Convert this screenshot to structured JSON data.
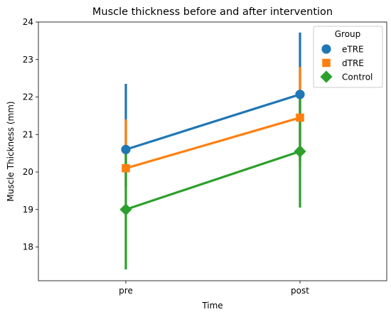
{
  "chart_data": {
    "type": "line",
    "title": "Muscle thickness before and after intervention",
    "xlabel": "Time",
    "ylabel": "Muscle Thickness (mm)",
    "categories": [
      "pre",
      "post"
    ],
    "ylim": [
      17.1,
      24.0
    ],
    "yticks": [
      18,
      19,
      20,
      21,
      22,
      23,
      24
    ],
    "legend": {
      "title": "Group",
      "placement": "top-right"
    },
    "series": [
      {
        "name": "eTRE",
        "color": "#1f77b4",
        "marker": "circle",
        "values": [
          20.6,
          22.07
        ],
        "ci_low": [
          19.6,
          20.3
        ],
        "ci_high": [
          22.35,
          23.72
        ]
      },
      {
        "name": "dTRE",
        "color": "#ff7f0e",
        "marker": "square",
        "values": [
          20.1,
          21.45
        ],
        "ci_low": [
          19.6,
          20.15
        ],
        "ci_high": [
          21.4,
          22.8
        ]
      },
      {
        "name": "Control",
        "color": "#2ca02c",
        "marker": "diamond",
        "values": [
          19.0,
          20.55
        ],
        "ci_low": [
          17.4,
          19.05
        ],
        "ci_high": [
          20.6,
          22.07
        ]
      }
    ]
  }
}
